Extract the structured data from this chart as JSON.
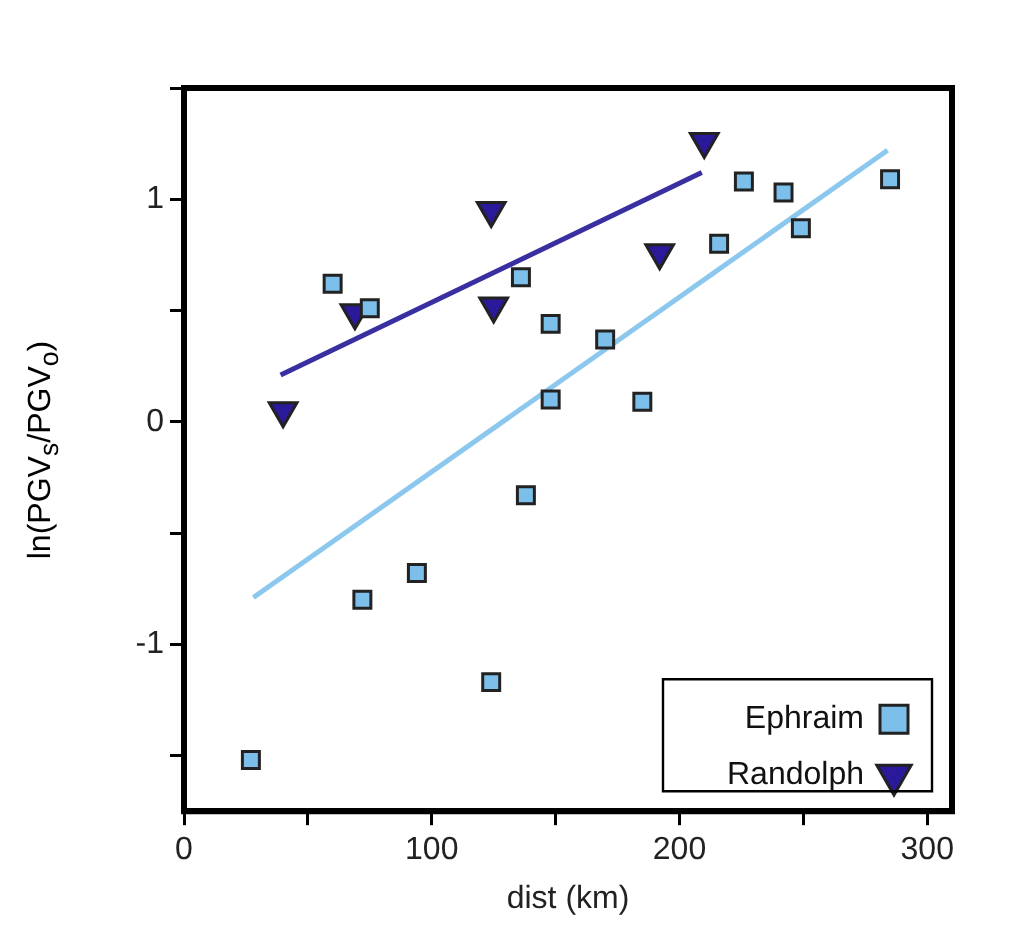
{
  "chart_data": {
    "type": "scatter",
    "xlabel": "dist (km)",
    "ylabel": "ln(PGV$_{s}$/PGV$_{o}$)",
    "xlim": [
      0,
      310
    ],
    "ylim": [
      -1.75,
      1.5
    ],
    "xticks": [
      0,
      {
        "value": 50,
        "label": null
      },
      100,
      {
        "value": 150,
        "label": null
      },
      200,
      {
        "value": 250,
        "label": null
      },
      300
    ],
    "yticks": [
      {
        "value": -1.5,
        "label": null
      },
      -1,
      {
        "value": -0.5,
        "label": null
      },
      0,
      {
        "value": 0.5,
        "label": null
      },
      1,
      {
        "value": 1.5,
        "label": null
      }
    ],
    "grid": false,
    "legend": "bottom right",
    "series": [
      {
        "name": "Ephraim",
        "color": "#7bbfea",
        "marker": "square",
        "x": [
          27,
          60,
          75,
          72,
          94,
          124,
          138,
          136,
          148,
          148,
          170,
          185,
          216,
          226,
          242,
          249,
          285
        ],
        "values": [
          -1.52,
          0.62,
          0.51,
          -0.8,
          -0.68,
          -1.17,
          -0.33,
          0.65,
          0.44,
          0.1,
          0.37,
          0.09,
          0.8,
          1.08,
          1.03,
          0.87,
          1.09
        ]
      },
      {
        "name": "Randolph",
        "color": "#2a1a9a",
        "marker": "triangle",
        "x": [
          40,
          69,
          124,
          125,
          192,
          210
        ],
        "values": [
          0.05,
          0.49,
          0.95,
          0.52,
          0.76,
          1.26
        ]
      },
      {
        "type": "line",
        "color": "#8cc8ee",
        "marker": "none",
        "x": [
          28,
          284
        ],
        "values": [
          -0.79,
          1.22
        ]
      },
      {
        "type": "line",
        "color": "#3a2fa0",
        "marker": "none",
        "x": [
          39,
          209
        ],
        "values": [
          0.21,
          1.12
        ]
      }
    ]
  }
}
